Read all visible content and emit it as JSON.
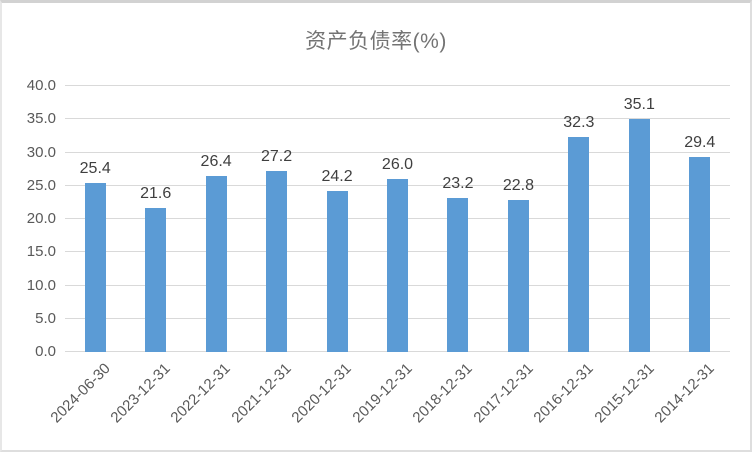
{
  "chart_data": {
    "type": "bar",
    "title": "资产负债率(%)",
    "categories": [
      "2024-06-30",
      "2023-12-31",
      "2022-12-31",
      "2021-12-31",
      "2020-12-31",
      "2019-12-31",
      "2018-12-31",
      "2017-12-31",
      "2016-12-31",
      "2015-12-31",
      "2014-12-31"
    ],
    "values": [
      25.4,
      21.6,
      26.4,
      27.2,
      24.2,
      26.0,
      23.2,
      22.8,
      32.3,
      35.1,
      29.4
    ],
    "data_labels": [
      "25.4",
      "21.6",
      "26.4",
      "27.2",
      "24.2",
      "26.0",
      "23.2",
      "22.8",
      "32.3",
      "35.1",
      "29.4"
    ],
    "xlabel": "",
    "ylabel": "",
    "ylim": [
      0,
      40
    ],
    "yticks": [
      0,
      5,
      10,
      15,
      20,
      25,
      30,
      35,
      40
    ],
    "ytick_labels": [
      "0.0",
      "5.0",
      "10.0",
      "15.0",
      "20.0",
      "25.0",
      "30.0",
      "35.0",
      "40.0"
    ],
    "grid": true,
    "legend": false,
    "x_label_rotation_deg": 45,
    "colors": {
      "bar": "#5b9bd5",
      "gridline": "#d9d9d9",
      "axis_text": "#595959",
      "data_label_text": "#3f3f3f",
      "title_text": "#737373"
    }
  }
}
